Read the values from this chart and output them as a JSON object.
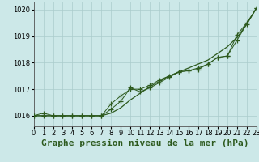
{
  "title": "Graphe pression niveau de la mer (hPa)",
  "background_color": "#cce8e8",
  "grid_color": "#aacccc",
  "line_color": "#2d5a1e",
  "x_labels": [
    "0",
    "1",
    "2",
    "3",
    "4",
    "5",
    "6",
    "7",
    "8",
    "9",
    "10",
    "11",
    "12",
    "13",
    "14",
    "15",
    "16",
    "17",
    "18",
    "19",
    "20",
    "21",
    "22",
    "23"
  ],
  "xlim": [
    0,
    23
  ],
  "ylim": [
    1015.6,
    1020.3
  ],
  "yticks": [
    1016,
    1017,
    1018,
    1019,
    1020
  ],
  "series_marker": [
    1016.0,
    1016.1,
    1016.0,
    1016.0,
    1016.0,
    1016.0,
    1016.0,
    1016.0,
    1016.25,
    1016.55,
    1017.05,
    1016.9,
    1017.05,
    1017.25,
    1017.45,
    1017.65,
    1017.7,
    1017.75,
    1017.95,
    1018.2,
    1018.25,
    1019.05,
    1019.5,
    1020.05
  ],
  "series_marker2": [
    1016.0,
    1016.0,
    1016.0,
    1016.0,
    1016.0,
    1016.0,
    1016.0,
    1016.0,
    1016.45,
    1016.75,
    1017.0,
    1017.0,
    1017.15,
    1017.35,
    1017.5,
    1017.65,
    1017.7,
    1017.8,
    1017.95,
    1018.2,
    1018.25,
    1018.85,
    1019.45,
    1020.05
  ],
  "smooth_line": [
    1016.0,
    1016.0,
    1016.0,
    1016.0,
    1016.0,
    1016.0,
    1016.0,
    1016.0,
    1016.1,
    1016.3,
    1016.6,
    1016.85,
    1017.1,
    1017.3,
    1017.5,
    1017.65,
    1017.8,
    1017.95,
    1018.1,
    1018.35,
    1018.6,
    1018.95,
    1019.45,
    1020.05
  ],
  "title_fontsize": 8,
  "tick_fontsize": 6,
  "marker_size": 4,
  "linewidth": 0.9
}
